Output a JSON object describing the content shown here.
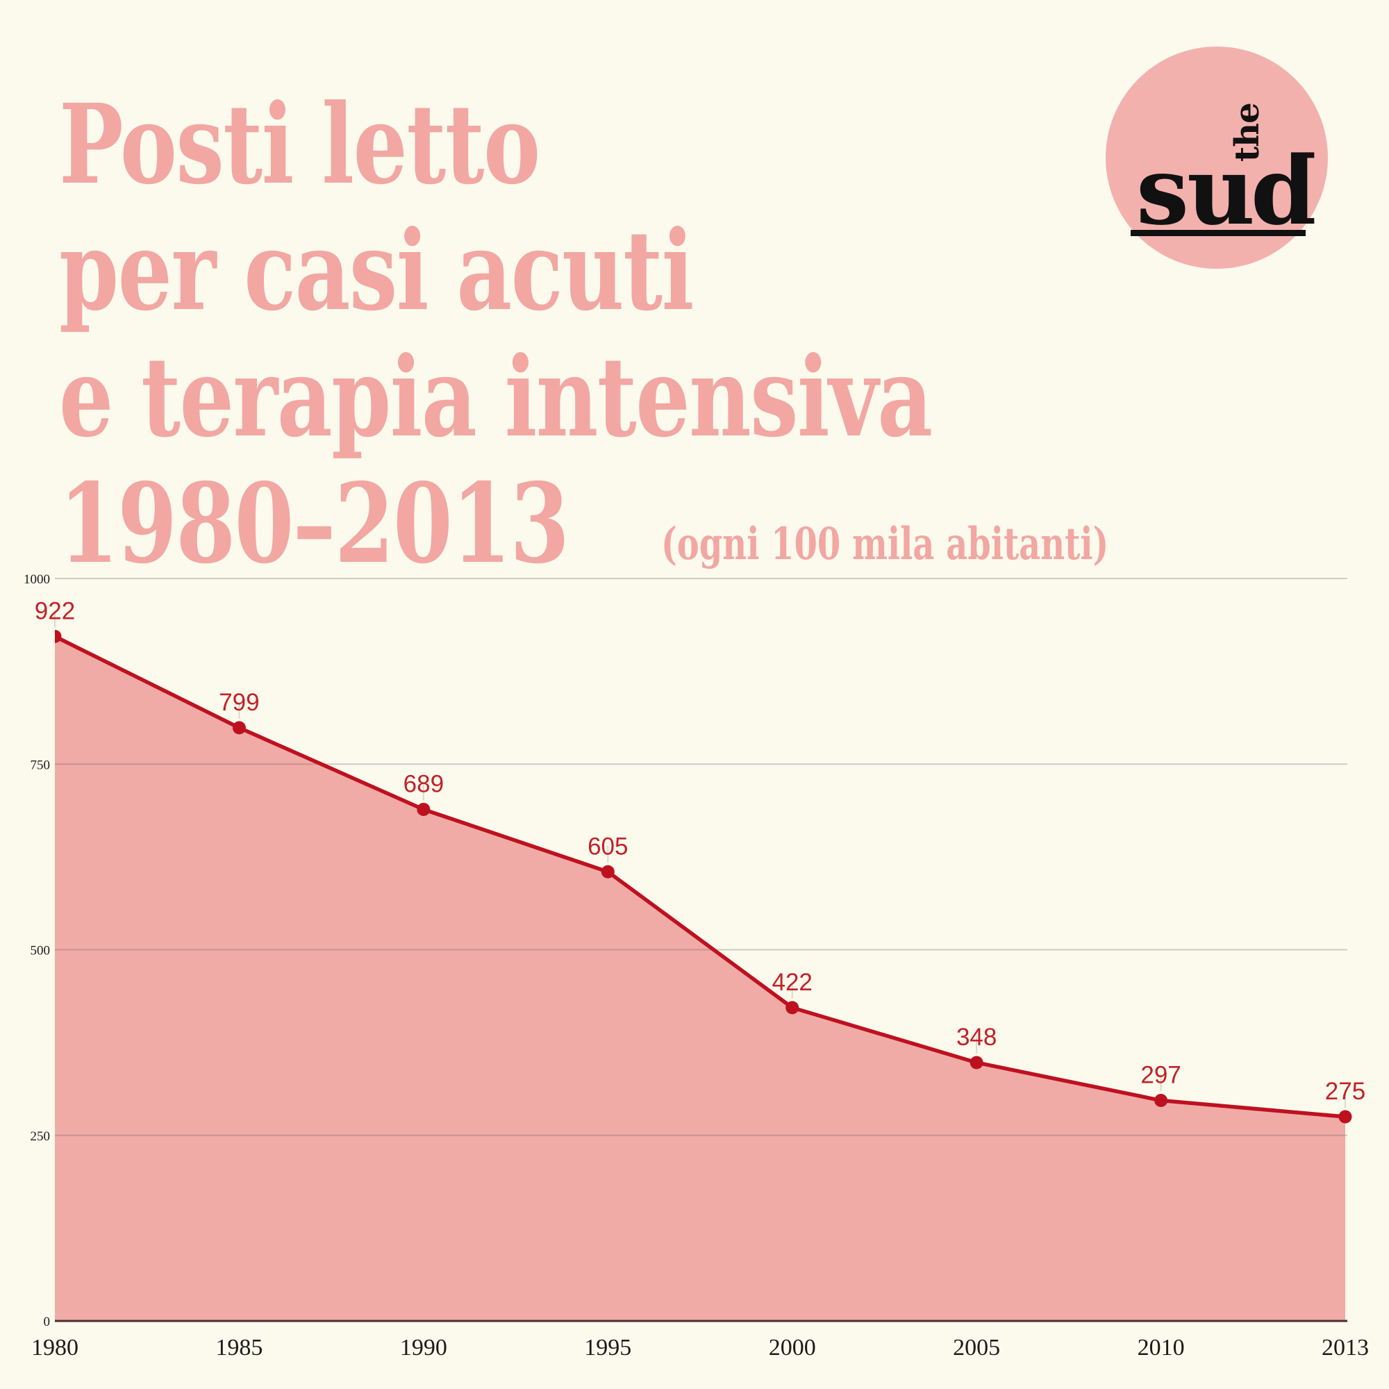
{
  "title": {
    "lines": [
      "Posti letto",
      "per casi acuti",
      "e terapia intensiva",
      "1980–2013"
    ],
    "subtitle": "(ogni 100 mila abitanti)"
  },
  "logo": {
    "name": "the sub",
    "vertical_text": "the",
    "wordmark_prefix": "su",
    "wordmark_flipped_letter": "b"
  },
  "colors": {
    "background": "#FBFAED",
    "title_pink": "#F2A7A2",
    "logo_circle": "#F3B1AD",
    "logo_text": "#111111",
    "area_fill": "#F1ABA7",
    "line_red": "#BE1120",
    "value_label_red": "#C32127",
    "axis_text": "#1B1B1B",
    "gridline": "rgba(90,90,90,0.28)",
    "axis_line": "#4A2F2F",
    "connector": "#D8D8D0"
  },
  "chart_data": {
    "type": "area",
    "categories": [
      "1980",
      "1985",
      "1990",
      "1995",
      "2000",
      "2005",
      "2010",
      "2013"
    ],
    "values": [
      922,
      799,
      689,
      605,
      422,
      348,
      297,
      275
    ],
    "title": "Posti letto per casi acuti e terapia intensiva 1980–2013",
    "subtitle": "(ogni 100 mila abitanti)",
    "xlabel": "",
    "ylabel": "",
    "ylim": [
      0,
      1000
    ],
    "yticks": [
      0,
      250,
      500,
      750,
      1000
    ],
    "grid": true,
    "legend_position": "none",
    "x_axis_type": "categorical",
    "point_labels_visible": true
  }
}
